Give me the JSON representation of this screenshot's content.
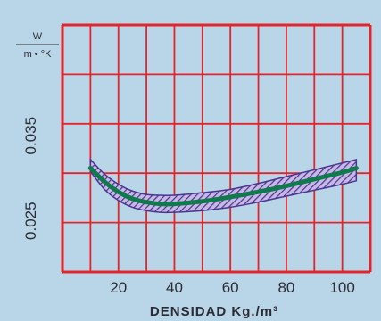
{
  "chart_data": {
    "type": "line",
    "title": "",
    "xlabel": "DENSIDAD  Kg./m³",
    "ylabel_numerator": "W",
    "ylabel_denominator": "m • °K",
    "xlim": [
      0,
      110
    ],
    "ylim": [
      0.019,
      0.048
    ],
    "x_ticks": [
      20,
      40,
      60,
      80,
      100
    ],
    "x_tick_labels": [
      "20",
      "40",
      "60",
      "80",
      "100"
    ],
    "y_ticks": [
      0.025,
      0.035
    ],
    "y_tick_labels": [
      "0.025",
      "0.035"
    ],
    "grid": true,
    "series": [
      {
        "x": [
          10,
          15,
          20,
          25,
          30,
          35,
          40,
          50,
          60,
          70,
          80,
          90,
          100,
          105
        ],
        "y": [
          0.0312,
          0.0296,
          0.0284,
          0.0276,
          0.0272,
          0.027,
          0.027,
          0.0273,
          0.0278,
          0.0284,
          0.0291,
          0.0299,
          0.0307,
          0.0312
        ]
      }
    ],
    "band": {
      "x": [
        10,
        15,
        20,
        25,
        30,
        35,
        40,
        50,
        60,
        70,
        80,
        90,
        100,
        105
      ],
      "upper": [
        0.0322,
        0.0305,
        0.0293,
        0.0285,
        0.0281,
        0.028,
        0.028,
        0.0283,
        0.0287,
        0.0294,
        0.0302,
        0.031,
        0.0318,
        0.0322
      ],
      "lower": [
        0.0308,
        0.0287,
        0.0274,
        0.0266,
        0.0262,
        0.026,
        0.026,
        0.0262,
        0.0266,
        0.0272,
        0.0279,
        0.0286,
        0.0293,
        0.0297
      ]
    },
    "colors": {
      "grid": "#e2252b",
      "line": "#0f7a4c",
      "band_hatch": "#4a3591",
      "band_fill": "#c7b9e4",
      "background": "#b9d5e8",
      "text": "#2b2b34"
    }
  }
}
